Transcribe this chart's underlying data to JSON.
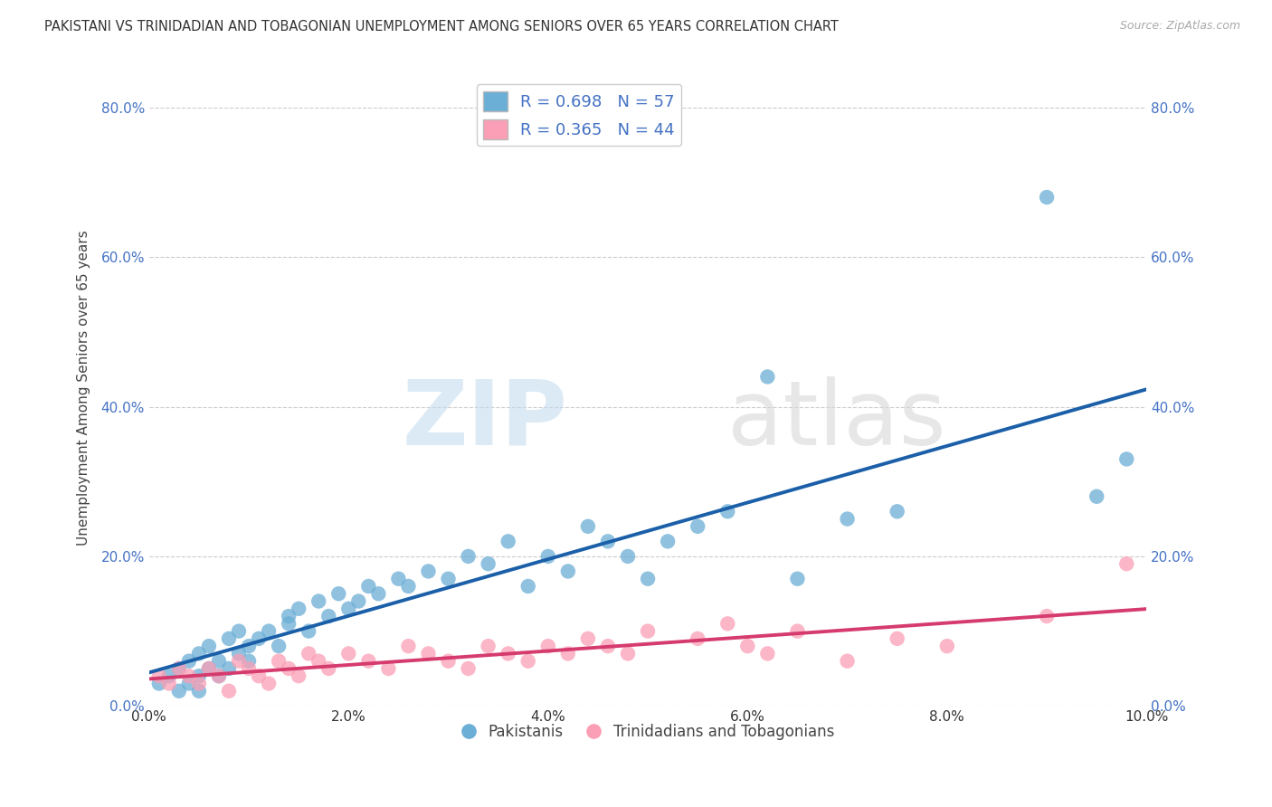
{
  "title": "PAKISTANI VS TRINIDADIAN AND TOBAGONIAN UNEMPLOYMENT AMONG SENIORS OVER 65 YEARS CORRELATION CHART",
  "source": "Source: ZipAtlas.com",
  "ylabel": "Unemployment Among Seniors over 65 years",
  "xlabel_ticks": [
    "0.0%",
    "2.0%",
    "4.0%",
    "6.0%",
    "8.0%",
    "10.0%"
  ],
  "ylabel_ticks": [
    "0.0%",
    "20.0%",
    "40.0%",
    "60.0%",
    "80.0%"
  ],
  "xlim": [
    0.0,
    0.1
  ],
  "ylim": [
    0.0,
    0.85
  ],
  "legend_label1": "Pakistanis",
  "legend_label2": "Trinidadians and Tobagonians",
  "blue_color": "#6baed6",
  "pink_color": "#fa9fb5",
  "blue_line_color": "#1a5fa8",
  "pink_line_color": "#d63b6e",
  "legend_r_n_color": "#4472c4",
  "tick_color_y": "#4472c4",
  "tick_color_x": "#333333",
  "grid_color": "#cccccc",
  "background_color": "#ffffff",
  "title_color": "#333333",
  "source_color": "#aaaaaa",
  "ylabel_color": "#444444",
  "watermark_zip_color": "#c6dcef",
  "watermark_atlas_color": "#d8d8d8",
  "pakistani_x": [
    0.001,
    0.002,
    0.003,
    0.003,
    0.004,
    0.004,
    0.005,
    0.005,
    0.005,
    0.006,
    0.006,
    0.007,
    0.007,
    0.008,
    0.008,
    0.009,
    0.009,
    0.01,
    0.01,
    0.011,
    0.012,
    0.013,
    0.014,
    0.014,
    0.015,
    0.016,
    0.017,
    0.018,
    0.019,
    0.02,
    0.021,
    0.022,
    0.023,
    0.025,
    0.026,
    0.028,
    0.03,
    0.032,
    0.034,
    0.036,
    0.038,
    0.04,
    0.042,
    0.044,
    0.046,
    0.048,
    0.05,
    0.052,
    0.055,
    0.058,
    0.062,
    0.065,
    0.07,
    0.075,
    0.09,
    0.095,
    0.098
  ],
  "pakistani_y": [
    0.03,
    0.04,
    0.02,
    0.05,
    0.03,
    0.06,
    0.04,
    0.07,
    0.02,
    0.05,
    0.08,
    0.04,
    0.06,
    0.05,
    0.09,
    0.07,
    0.1,
    0.06,
    0.08,
    0.09,
    0.1,
    0.08,
    0.12,
    0.11,
    0.13,
    0.1,
    0.14,
    0.12,
    0.15,
    0.13,
    0.14,
    0.16,
    0.15,
    0.17,
    0.16,
    0.18,
    0.17,
    0.2,
    0.19,
    0.22,
    0.16,
    0.2,
    0.18,
    0.24,
    0.22,
    0.2,
    0.17,
    0.22,
    0.24,
    0.26,
    0.44,
    0.17,
    0.25,
    0.26,
    0.68,
    0.28,
    0.33
  ],
  "trinidadian_x": [
    0.001,
    0.002,
    0.003,
    0.004,
    0.005,
    0.006,
    0.007,
    0.008,
    0.009,
    0.01,
    0.011,
    0.012,
    0.013,
    0.014,
    0.015,
    0.016,
    0.017,
    0.018,
    0.02,
    0.022,
    0.024,
    0.026,
    0.028,
    0.03,
    0.032,
    0.034,
    0.036,
    0.038,
    0.04,
    0.042,
    0.044,
    0.046,
    0.048,
    0.05,
    0.055,
    0.058,
    0.06,
    0.062,
    0.065,
    0.07,
    0.075,
    0.08,
    0.09,
    0.098
  ],
  "trinidadian_y": [
    0.04,
    0.03,
    0.05,
    0.04,
    0.03,
    0.05,
    0.04,
    0.02,
    0.06,
    0.05,
    0.04,
    0.03,
    0.06,
    0.05,
    0.04,
    0.07,
    0.06,
    0.05,
    0.07,
    0.06,
    0.05,
    0.08,
    0.07,
    0.06,
    0.05,
    0.08,
    0.07,
    0.06,
    0.08,
    0.07,
    0.09,
    0.08,
    0.07,
    0.1,
    0.09,
    0.11,
    0.08,
    0.07,
    0.1,
    0.06,
    0.09,
    0.08,
    0.12,
    0.19
  ]
}
